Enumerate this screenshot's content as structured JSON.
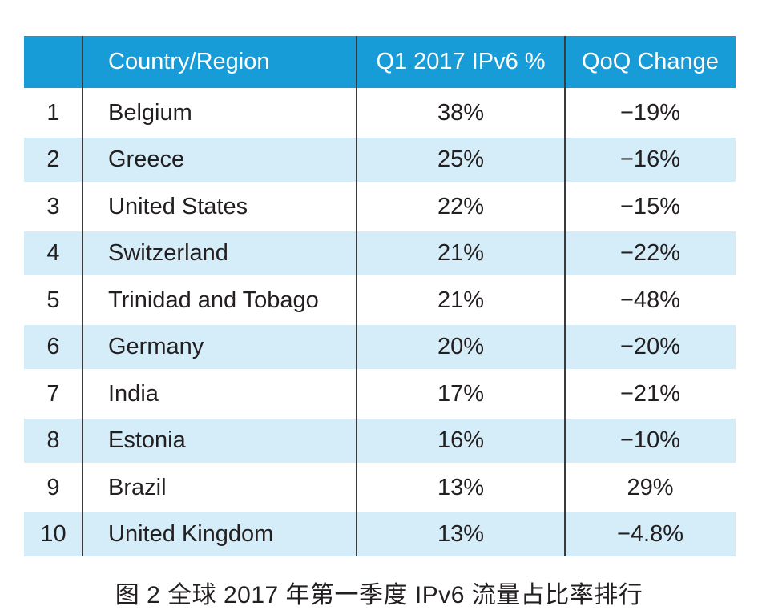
{
  "chart_data": {
    "type": "table",
    "headers": [
      "",
      "Country/Region",
      "Q1 2017 IPv6 %",
      "QoQ Change"
    ],
    "rows": [
      {
        "rank": "1",
        "country": "Belgium",
        "ipv6_pct": "38%",
        "qoq_change": "−19%"
      },
      {
        "rank": "2",
        "country": "Greece",
        "ipv6_pct": "25%",
        "qoq_change": "−16%"
      },
      {
        "rank": "3",
        "country": "United States",
        "ipv6_pct": "22%",
        "qoq_change": "−15%"
      },
      {
        "rank": "4",
        "country": "Switzerland",
        "ipv6_pct": "21%",
        "qoq_change": "−22%"
      },
      {
        "rank": "5",
        "country": "Trinidad and Tobago",
        "ipv6_pct": "21%",
        "qoq_change": "−48%"
      },
      {
        "rank": "6",
        "country": "Germany",
        "ipv6_pct": "20%",
        "qoq_change": "−20%"
      },
      {
        "rank": "7",
        "country": "India",
        "ipv6_pct": "17%",
        "qoq_change": "−21%"
      },
      {
        "rank": "8",
        "country": "Estonia",
        "ipv6_pct": "16%",
        "qoq_change": "−10%"
      },
      {
        "rank": "9",
        "country": "Brazil",
        "ipv6_pct": "13%",
        "qoq_change": "29%"
      },
      {
        "rank": "10",
        "country": "United Kingdom",
        "ipv6_pct": "13%",
        "qoq_change": "−4.8%"
      }
    ],
    "caption": "图 2 全球 2017 年第一季度 IPv6 流量占比率排行",
    "layout": {
      "alternating_rows": true,
      "column_alignment": [
        "center",
        "left",
        "center",
        "center"
      ]
    }
  },
  "colors": {
    "header_bg": "#189cd8",
    "header_text": "#ffffff",
    "row_alt_bg": "#d4edf9",
    "row_bg": "#ffffff",
    "divider": "#3b3b3b",
    "body_text": "#231f20"
  }
}
